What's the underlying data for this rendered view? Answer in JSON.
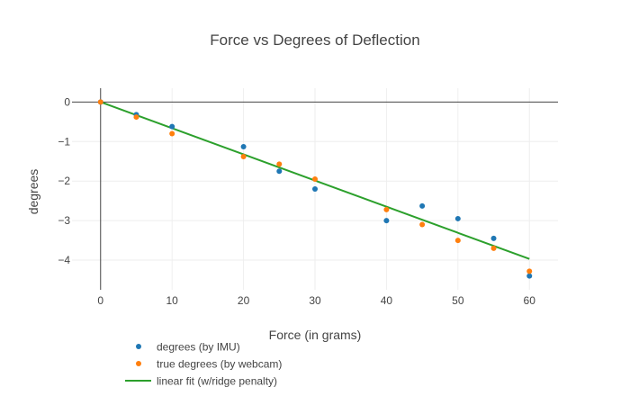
{
  "chart_data": {
    "type": "scatter",
    "title": "Force vs Degrees of Deflection",
    "xlabel": "Force (in grams)",
    "ylabel": "degrees",
    "xlim": [
      -4,
      64
    ],
    "ylim": [
      -4.75,
      0.35
    ],
    "x_ticks": [
      0,
      10,
      20,
      30,
      40,
      50,
      60
    ],
    "y_ticks": [
      0,
      -1,
      -2,
      -3,
      -4
    ],
    "x_tick_labels": [
      "0",
      "10",
      "20",
      "30",
      "40",
      "50",
      "60"
    ],
    "y_tick_labels": [
      "0",
      "−1",
      "−2",
      "−3",
      "−4"
    ],
    "grid": true,
    "legend_position": "bottom-left",
    "series": [
      {
        "name": "degrees (by IMU)",
        "mode": "markers",
        "color": "#1f77b4",
        "x": [
          0,
          5,
          10,
          20,
          25,
          30,
          40,
          45,
          50,
          55,
          60
        ],
        "y": [
          0,
          -0.32,
          -0.62,
          -1.13,
          -1.75,
          -2.2,
          -3.0,
          -2.63,
          -2.95,
          -3.45,
          -4.4
        ]
      },
      {
        "name": "true degrees (by webcam)",
        "mode": "markers",
        "color": "#ff7f0e",
        "x": [
          0,
          5,
          10,
          20,
          25,
          30,
          40,
          45,
          50,
          55,
          60
        ],
        "y": [
          0,
          -0.38,
          -0.8,
          -1.38,
          -1.57,
          -1.95,
          -2.72,
          -3.1,
          -3.5,
          -3.7,
          -4.28
        ]
      },
      {
        "name": "linear fit (w/ridge penalty)",
        "mode": "line",
        "color": "#2ca02c",
        "x": [
          0,
          60
        ],
        "y": [
          0,
          -3.97
        ]
      }
    ]
  }
}
